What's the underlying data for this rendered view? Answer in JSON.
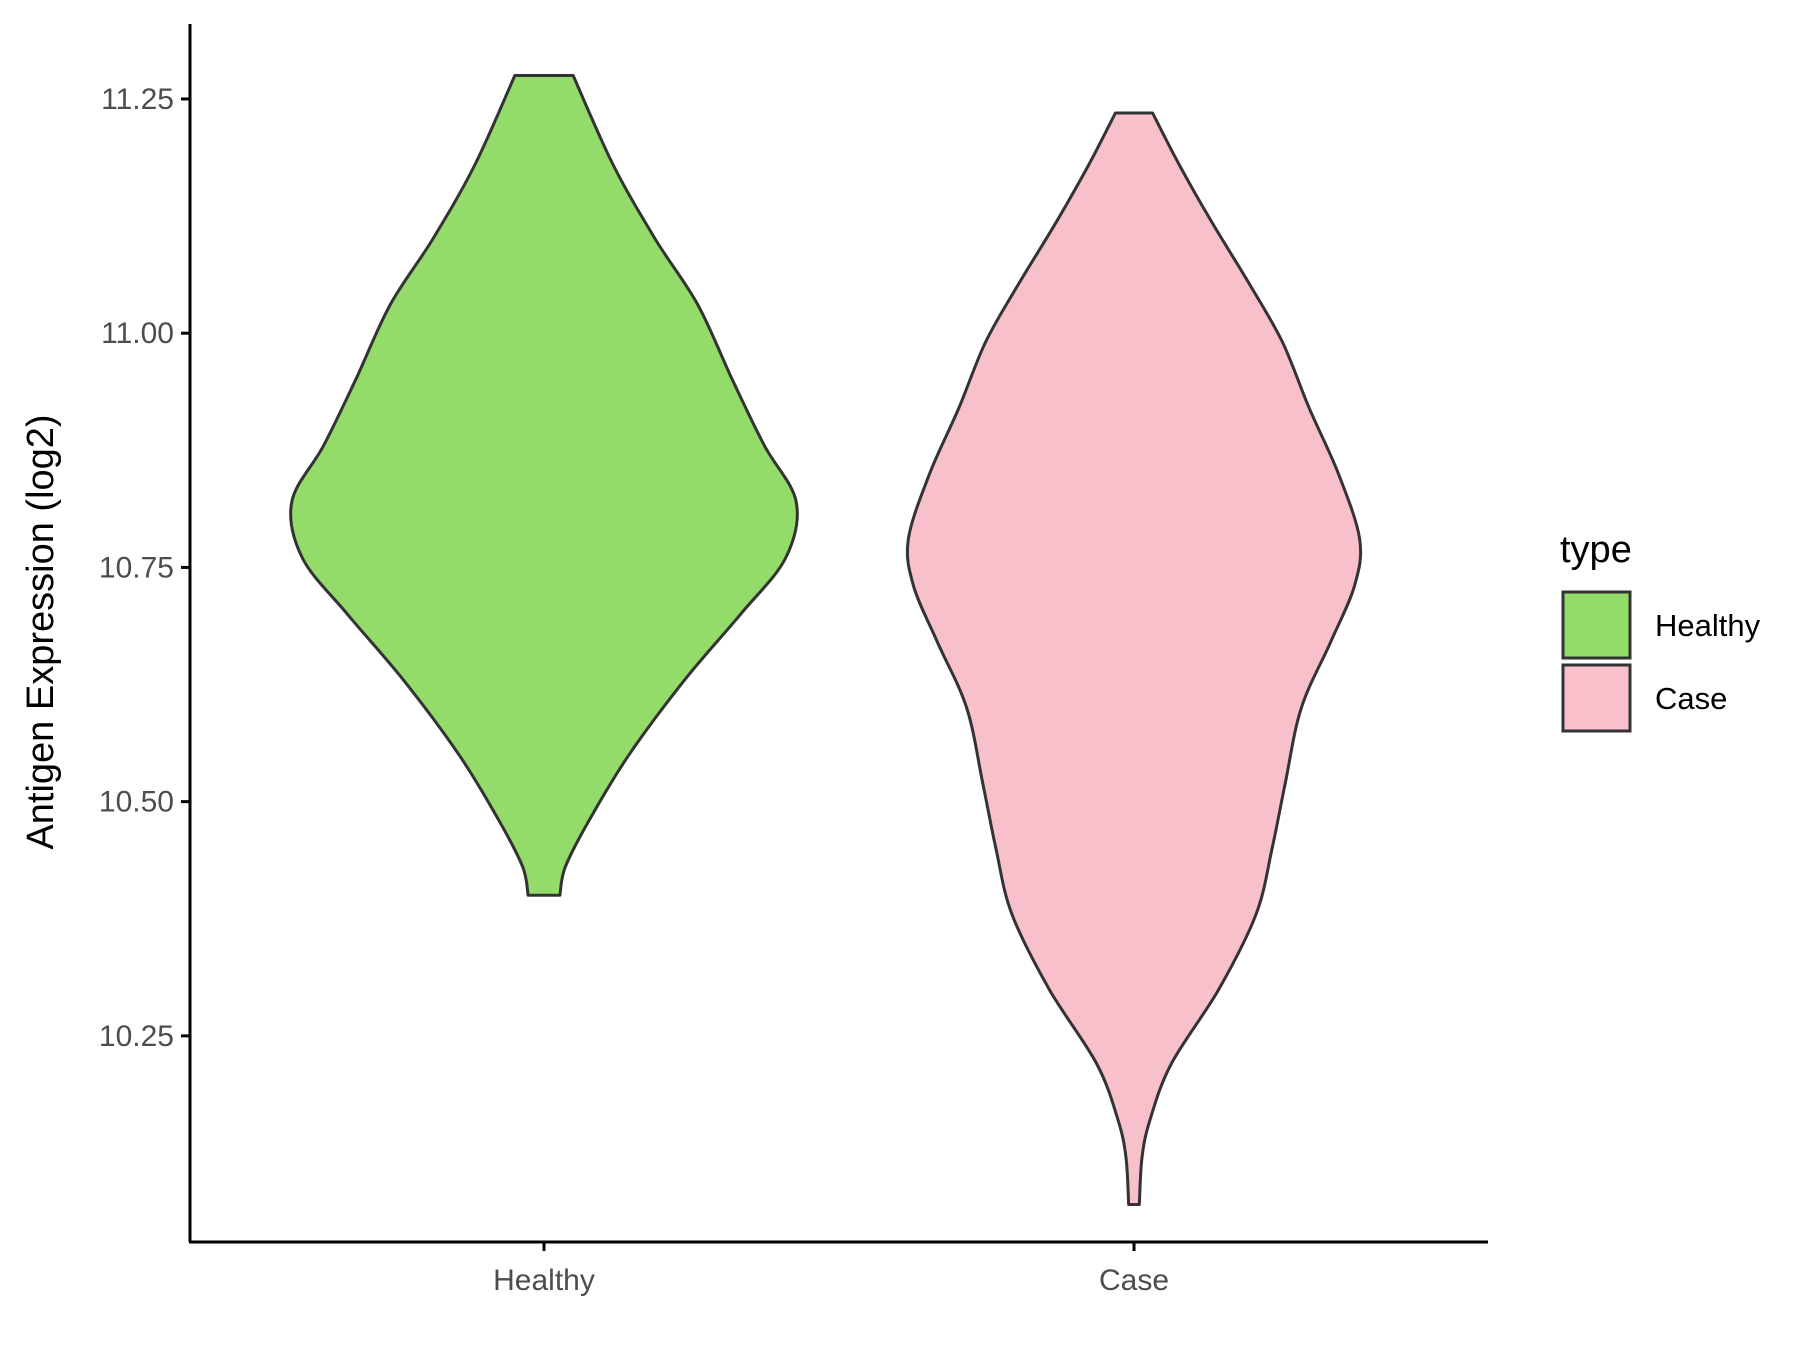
{
  "chart_data": {
    "type": "violin",
    "title": "",
    "xlabel": "",
    "ylabel": "Antigen Expression (log2)",
    "ylim": [
      10.03,
      11.33
    ],
    "yticks": [
      10.25,
      10.5,
      10.75,
      11.0,
      11.25
    ],
    "ytick_labels": [
      "10.25",
      "10.50",
      "10.75",
      "11.00",
      "11.25"
    ],
    "categories": [
      "Healthy",
      "Case"
    ],
    "grid": false,
    "legend": {
      "title": "type",
      "placement": "right",
      "entries": [
        {
          "label": "Healthy",
          "color": "#93dc6a"
        },
        {
          "label": "Case",
          "color": "#f8c0cb"
        }
      ]
    },
    "series": [
      {
        "category": "Healthy",
        "color": "#93dc6a",
        "min": 10.4,
        "max": 11.275,
        "profile": [
          [
            10.4,
            0.06
          ],
          [
            10.43,
            0.08
          ],
          [
            10.48,
            0.17
          ],
          [
            10.55,
            0.32
          ],
          [
            10.63,
            0.53
          ],
          [
            10.7,
            0.74
          ],
          [
            10.76,
            0.91
          ],
          [
            10.82,
            0.95
          ],
          [
            10.88,
            0.83
          ],
          [
            10.95,
            0.71
          ],
          [
            11.03,
            0.58
          ],
          [
            11.1,
            0.42
          ],
          [
            11.18,
            0.26
          ],
          [
            11.275,
            0.11
          ]
        ]
      },
      {
        "category": "Case",
        "color": "#f8c0cb",
        "min": 10.07,
        "max": 11.235,
        "profile": [
          [
            10.07,
            0.02
          ],
          [
            10.12,
            0.03
          ],
          [
            10.16,
            0.06
          ],
          [
            10.22,
            0.14
          ],
          [
            10.3,
            0.32
          ],
          [
            10.38,
            0.46
          ],
          [
            10.45,
            0.52
          ],
          [
            10.52,
            0.57
          ],
          [
            10.6,
            0.63
          ],
          [
            10.67,
            0.74
          ],
          [
            10.73,
            0.83
          ],
          [
            10.78,
            0.85
          ],
          [
            10.85,
            0.77
          ],
          [
            10.92,
            0.66
          ],
          [
            10.99,
            0.56
          ],
          [
            11.05,
            0.44
          ],
          [
            11.12,
            0.29
          ],
          [
            11.18,
            0.17
          ],
          [
            11.235,
            0.07
          ]
        ]
      }
    ]
  }
}
